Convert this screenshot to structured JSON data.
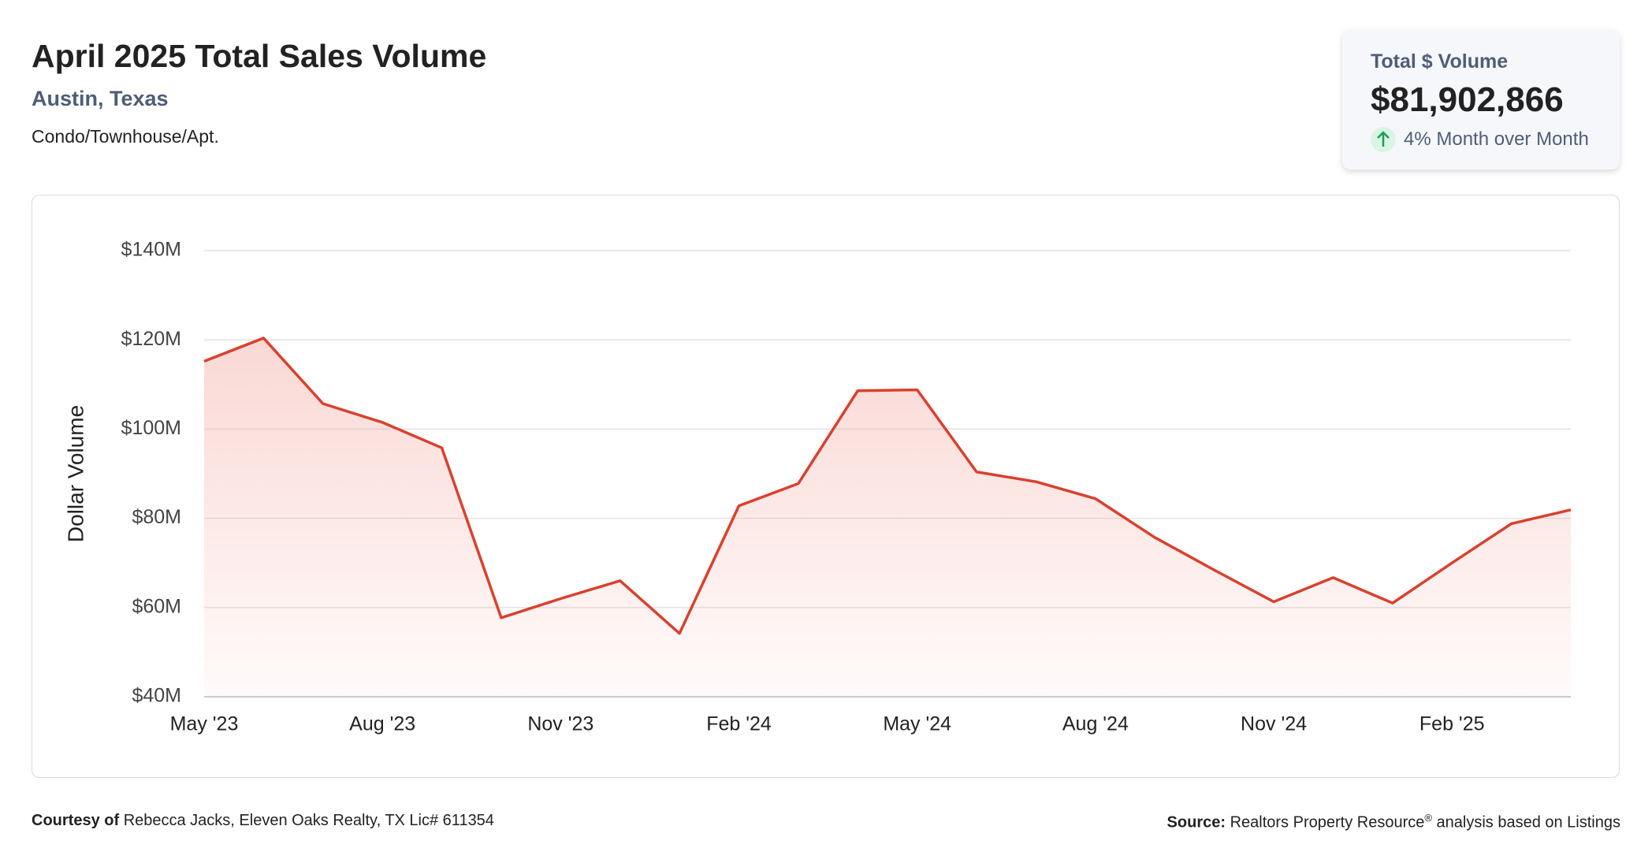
{
  "header": {
    "title": "April 2025 Total Sales Volume",
    "location": "Austin, Texas",
    "property_type": "Condo/Townhouse/Apt."
  },
  "card": {
    "label": "Total $ Volume",
    "value": "$81,902,866",
    "change": "4% Month over Month"
  },
  "footer": {
    "courtesy_label": "Courtesy of",
    "courtesy": "Rebecca Jacks, Eleven Oaks Realty, TX Lic# 611354",
    "source_label": "Source:",
    "source": "Realtors Property Resource",
    "source_mark": "®",
    "source_rest": "analysis based on Listings"
  },
  "chart_data": {
    "type": "line",
    "ylabel": "Dollar Volume",
    "color": "#d9412e",
    "grid": true,
    "categories": [
      "May '23",
      null,
      null,
      "Aug '23",
      null,
      null,
      "Nov '23",
      null,
      null,
      "Feb '24",
      null,
      null,
      "May '24",
      null,
      null,
      "Aug '24",
      null,
      null,
      "Nov '24",
      null,
      null,
      "Feb '25",
      null,
      null
    ],
    "values": [
      115.2,
      120.4,
      105.7,
      101.5,
      95.8,
      57.7,
      62,
      66,
      54.2,
      82.8,
      87.8,
      108.6,
      108.8,
      90.4,
      88.2,
      84.4,
      75.7,
      68.4,
      61.3,
      66.7,
      61,
      70,
      78.8,
      81.9
    ],
    "ylim": [
      40,
      140
    ],
    "yticks": [
      {
        "value": 40,
        "label": "$40M"
      },
      {
        "value": 60,
        "label": "$60M"
      },
      {
        "value": 80,
        "label": "$80M"
      },
      {
        "value": 100,
        "label": "$100M"
      },
      {
        "value": 120,
        "label": "$120M"
      },
      {
        "value": 140,
        "label": "$140M"
      }
    ]
  }
}
